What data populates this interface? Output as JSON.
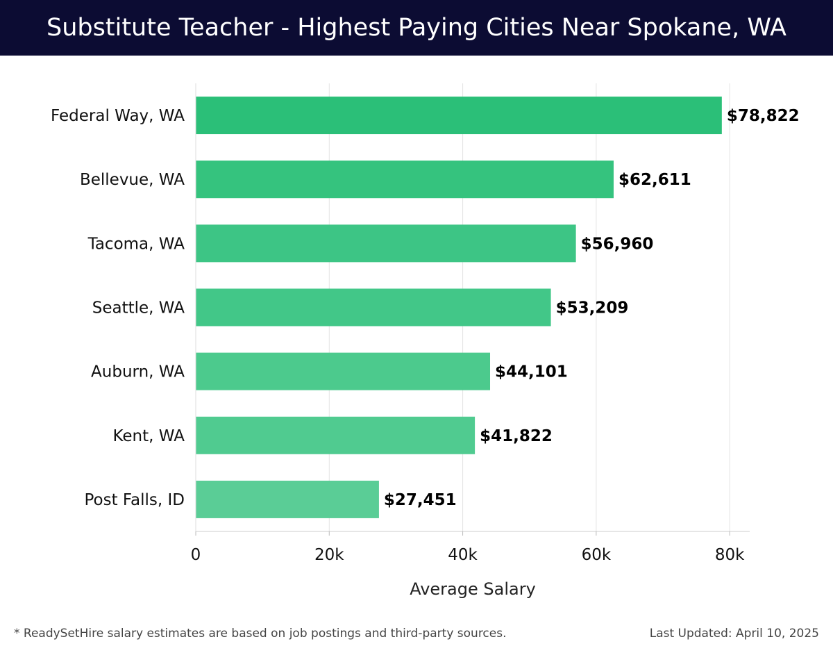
{
  "header": {
    "title": "Substitute Teacher - Highest Paying Cities Near Spokane, WA"
  },
  "chart_data": {
    "type": "bar",
    "orientation": "horizontal",
    "title": "Substitute Teacher - Highest Paying Cities Near Spokane, WA",
    "xlabel": "Average Salary",
    "ylabel": "",
    "categories": [
      "Federal Way, WA",
      "Bellevue, WA",
      "Tacoma, WA",
      "Seattle, WA",
      "Auburn, WA",
      "Kent, WA",
      "Post Falls, ID"
    ],
    "values": [
      78822,
      62611,
      56960,
      53209,
      44101,
      41822,
      27451
    ],
    "value_labels": [
      "$78,822",
      "$62,611",
      "$56,960",
      "$53,209",
      "$44,101",
      "$41,822",
      "$27,451"
    ],
    "xticks": [
      0,
      20000,
      40000,
      60000,
      80000
    ],
    "xtick_labels": [
      "0",
      "20k",
      "40k",
      "60k",
      "80k"
    ],
    "xlim": [
      0,
      83000
    ],
    "grid": true,
    "bar_colors": [
      "#2bbf78",
      "#35c37e",
      "#3dc585",
      "#42c788",
      "#4cca8d",
      "#50cb90",
      "#5acd96"
    ]
  },
  "footer": {
    "note": "* ReadySetHire salary estimates are based on job postings and third-party sources.",
    "updated": "Last Updated: April 10, 2025"
  }
}
